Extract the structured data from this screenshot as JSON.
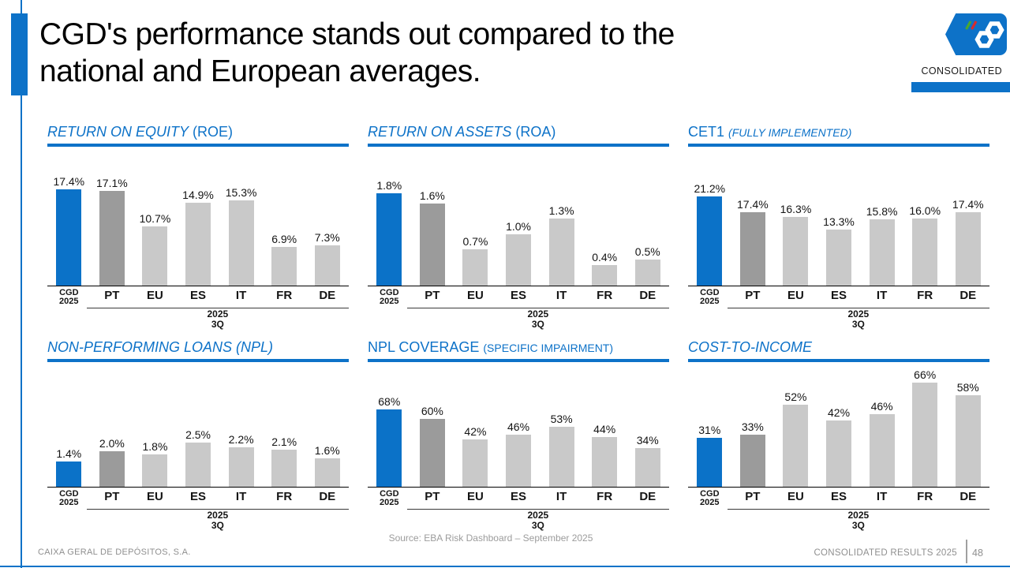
{
  "slide": {
    "title_lines": [
      "CGD's performance stands out compared to the",
      "national and European averages."
    ],
    "badge_label": "CONSOLIDATED",
    "colors": {
      "accent_blue": "#0d72c8",
      "bar_blue": "#0b72c8",
      "bar_dark_gray": "#9b9b9b",
      "bar_light_gray": "#c9c9c9",
      "logo_green": "#4ba82e",
      "logo_red": "#d92b2b"
    },
    "x_axis": {
      "cgd_line1": "CGD",
      "cgd_line2": "2025",
      "countries": [
        "PT",
        "EU",
        "ES",
        "IT",
        "FR",
        "DE"
      ],
      "period_line1": "2025",
      "period_line2": "3Q"
    },
    "footer": {
      "company": "CAIXA GERAL DE DEPÓSITOS, S.A.",
      "source": "Source: EBA Risk Dashboard – September 2025",
      "right_label": "CONSOLIDATED RESULTS 2025",
      "page_number": "48"
    }
  },
  "chart_data": [
    {
      "id": "roe",
      "type": "bar",
      "title_main": "RETURN ON EQUITY",
      "title_main_italic": true,
      "title_paren": "(ROE)",
      "title_paren_italic": false,
      "title_paren_small": false,
      "categories": [
        "CGD 2025",
        "PT",
        "EU",
        "ES",
        "IT",
        "FR",
        "DE"
      ],
      "values": [
        17.4,
        17.1,
        10.7,
        14.9,
        15.3,
        6.9,
        7.3
      ],
      "labels": [
        "17.4%",
        "17.1%",
        "10.7%",
        "14.9%",
        "15.3%",
        "6.9%",
        "7.3%"
      ],
      "group_label": "2025 3Q",
      "ymax": 25,
      "grid": false,
      "legend": false
    },
    {
      "id": "roa",
      "type": "bar",
      "title_main": "RETURN ON ASSETS",
      "title_main_italic": true,
      "title_paren": "(ROA)",
      "title_paren_italic": false,
      "title_paren_small": false,
      "categories": [
        "CGD 2025",
        "PT",
        "EU",
        "ES",
        "IT",
        "FR",
        "DE"
      ],
      "values": [
        1.8,
        1.6,
        0.7,
        1.0,
        1.3,
        0.4,
        0.5
      ],
      "labels": [
        "1.8%",
        "1.6%",
        "0.7%",
        "1.0%",
        "1.3%",
        "0.4%",
        "0.5%"
      ],
      "group_label": "2025 3Q",
      "ymax": 2.7,
      "grid": false,
      "legend": false
    },
    {
      "id": "cet1",
      "type": "bar",
      "title_main": "CET1",
      "title_main_italic": false,
      "title_paren": "(FULLY IMPLEMENTED)",
      "title_paren_italic": true,
      "title_paren_small": true,
      "categories": [
        "CGD 2025",
        "PT",
        "EU",
        "ES",
        "IT",
        "FR",
        "DE"
      ],
      "values": [
        21.2,
        17.4,
        16.3,
        13.3,
        15.8,
        16.0,
        17.4
      ],
      "labels": [
        "21.2%",
        "17.4%",
        "16.3%",
        "13.3%",
        "15.8%",
        "16.0%",
        "17.4%"
      ],
      "group_label": "2025 3Q",
      "ymax": 33,
      "grid": false,
      "legend": false
    },
    {
      "id": "npl",
      "type": "bar",
      "title_main": "NON-PERFORMING LOANS",
      "title_main_italic": true,
      "title_paren": "(NPL)",
      "title_paren_italic": true,
      "title_paren_small": false,
      "categories": [
        "CGD 2025",
        "PT",
        "EU",
        "ES",
        "IT",
        "FR",
        "DE"
      ],
      "values": [
        1.4,
        2.0,
        1.8,
        2.5,
        2.2,
        2.1,
        1.6
      ],
      "labels": [
        "1.4%",
        "2.0%",
        "1.8%",
        "2.5%",
        "2.2%",
        "2.1%",
        "1.6%"
      ],
      "group_label": "2025 3Q",
      "ymax": 7,
      "grid": false,
      "legend": false
    },
    {
      "id": "npl-coverage",
      "type": "bar",
      "title_main": "NPL COVERAGE",
      "title_main_italic": false,
      "title_paren": "(SPECIFIC IMPAIRMENT)",
      "title_paren_italic": false,
      "title_paren_small": true,
      "categories": [
        "CGD 2025",
        "PT",
        "EU",
        "ES",
        "IT",
        "FR",
        "DE"
      ],
      "values": [
        68,
        60,
        42,
        46,
        53,
        44,
        34
      ],
      "labels": [
        "68%",
        "60%",
        "42%",
        "46%",
        "53%",
        "44%",
        "34%"
      ],
      "group_label": "2025 3Q",
      "ymax": 110,
      "grid": false,
      "legend": false
    },
    {
      "id": "cost-to-income",
      "type": "bar",
      "title_main": "COST-TO-INCOME",
      "title_main_italic": true,
      "title_paren": "",
      "title_paren_italic": false,
      "title_paren_small": false,
      "categories": [
        "CGD 2025",
        "PT",
        "EU",
        "ES",
        "IT",
        "FR",
        "DE"
      ],
      "values": [
        31,
        33,
        52,
        42,
        46,
        66,
        58
      ],
      "labels": [
        "31%",
        "33%",
        "52%",
        "42%",
        "46%",
        "66%",
        "58%"
      ],
      "group_label": "2025 3Q",
      "ymax": 79,
      "grid": false,
      "legend": false
    }
  ]
}
